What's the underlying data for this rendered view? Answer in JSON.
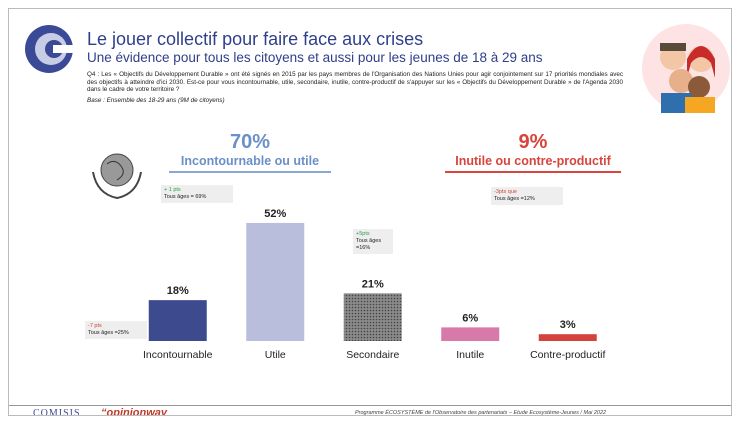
{
  "slide": {
    "title": "Le jouer collectif pour faire face aux crises",
    "subtitle": "Une évidence pour tous les citoyens et aussi pour les jeunes de 18 à 29 ans",
    "question": "Q4 : Les « Objectifs du Développement Durable » ont été signés en 2015 par les pays membres de l'Organisation des Nations Unies pour agir conjointement sur 17 priorités mondiales avec des objectifs à atteindre d'ici 2030. Est-ce pour vous incontournable, utile, secondaire, inutile, contre-productif de s'appuyer sur les « Objectifs du Développement Durable » de l'Agenda 2030 dans le cadre de votre territoire ?",
    "base": "Base : Ensemble des 18-29 ans (9M de citoyens)",
    "groups": [
      {
        "total": "70%",
        "label": "Incontournable ou utile"
      },
      {
        "total": "9%",
        "label": "Inutile ou contre-productif"
      }
    ],
    "callouts": [
      {
        "delta": "-7 pts",
        "text": "Tous âges =25%"
      },
      {
        "delta": "+ 1 pts",
        "text": "Tous âges = 69%"
      },
      {
        "delta": "+5pts",
        "text": "Tous âges =16%"
      },
      {
        "delta": "-3pts  que",
        "text": "Tous âges =12%"
      }
    ],
    "footer": {
      "logo1": "COMISIS",
      "logo2": "“opinionway",
      "source": "Programme ÉCOSYSTÈME de l'Observatoire des partenariats – Etude Ecosystème-Jeunes / Mai 2022"
    }
  },
  "chart_data": {
    "type": "bar",
    "categories": [
      "Incontournable",
      "Utile",
      "Secondaire",
      "Inutile",
      "Contre-productif"
    ],
    "values": [
      18,
      52,
      21,
      6,
      3
    ],
    "value_labels": [
      "18%",
      "52%",
      "21%",
      "6%",
      "3%"
    ],
    "colors": [
      "#3d4b8e",
      "#b9bedc",
      "#7a7a7a",
      "#d77aa9",
      "#d4433b"
    ]
  }
}
